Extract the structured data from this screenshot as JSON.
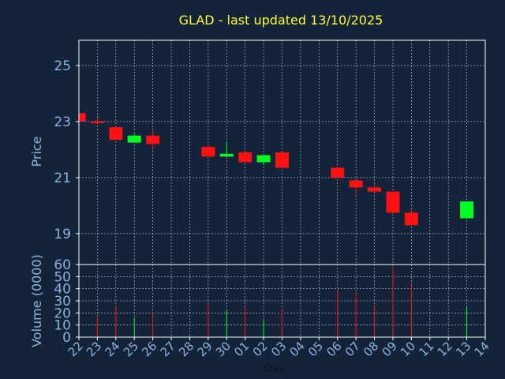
{
  "colors": {
    "background": "#13233a",
    "frame": "#ffffff",
    "grid": "#ffffff",
    "title": "#ffff33",
    "axis_text": "#8fb2d8",
    "up": "#00ff22",
    "down": "#ff1111",
    "day_label": "#0b1420"
  },
  "chart_data": {
    "type": "candlestick",
    "title": "GLAD - last updated 13/10/2025",
    "price_panel": {
      "ylabel": "Price",
      "ylim": [
        17.9,
        25.9
      ],
      "yticks": [
        19,
        21,
        23,
        25
      ],
      "grid": true
    },
    "volume_panel": {
      "ylabel": "Volume (0000)",
      "ylim": [
        0,
        60
      ],
      "yticks": [
        0,
        10,
        20,
        30,
        40,
        50,
        60
      ],
      "grid": true
    },
    "xlabel": "Day",
    "x_ticks": [
      "22",
      "23",
      "24",
      "25",
      "26",
      "27",
      "28",
      "29",
      "30",
      "01",
      "02",
      "03",
      "04",
      "05",
      "06",
      "07",
      "08",
      "09",
      "10",
      "11",
      "12",
      "13",
      "14"
    ],
    "candles": [
      {
        "day": "22",
        "open": 23.3,
        "close": 23.0,
        "high": 23.3,
        "low": 22.95,
        "volume": 0
      },
      {
        "day": "23",
        "open": 23.0,
        "close": 22.95,
        "high": 23.15,
        "low": 22.9,
        "volume": 16
      },
      {
        "day": "24",
        "open": 22.8,
        "close": 22.35,
        "high": 22.85,
        "low": 22.35,
        "volume": 26
      },
      {
        "day": "25",
        "open": 22.25,
        "close": 22.5,
        "high": 22.55,
        "low": 22.25,
        "volume": 16
      },
      {
        "day": "26",
        "open": 22.5,
        "close": 22.2,
        "high": 22.7,
        "low": 22.05,
        "volume": 20
      },
      {
        "day": "29",
        "open": 22.1,
        "close": 21.75,
        "high": 22.15,
        "low": 21.75,
        "volume": 28
      },
      {
        "day": "30",
        "open": 21.75,
        "close": 21.85,
        "high": 22.25,
        "low": 21.75,
        "volume": 22
      },
      {
        "day": "01",
        "open": 21.9,
        "close": 21.55,
        "high": 21.9,
        "low": 21.55,
        "volume": 25
      },
      {
        "day": "02",
        "open": 21.55,
        "close": 21.8,
        "high": 21.8,
        "low": 21.45,
        "volume": 14
      },
      {
        "day": "03",
        "open": 21.9,
        "close": 21.35,
        "high": 21.9,
        "low": 21.35,
        "volume": 24
      },
      {
        "day": "06",
        "open": 21.35,
        "close": 21.0,
        "high": 21.4,
        "low": 21.0,
        "volume": 39
      },
      {
        "day": "07",
        "open": 20.9,
        "close": 20.65,
        "high": 20.9,
        "low": 20.45,
        "volume": 37
      },
      {
        "day": "08",
        "open": 20.65,
        "close": 20.5,
        "high": 20.75,
        "low": 20.5,
        "volume": 26
      },
      {
        "day": "09",
        "open": 20.5,
        "close": 19.75,
        "high": 20.5,
        "low": 19.65,
        "volume": 58
      },
      {
        "day": "10",
        "open": 19.75,
        "close": 19.3,
        "high": 19.85,
        "low": 19.3,
        "volume": 44
      },
      {
        "day": "13",
        "open": 19.55,
        "close": 20.15,
        "high": 20.15,
        "low": 19.55,
        "volume": 25
      }
    ]
  }
}
